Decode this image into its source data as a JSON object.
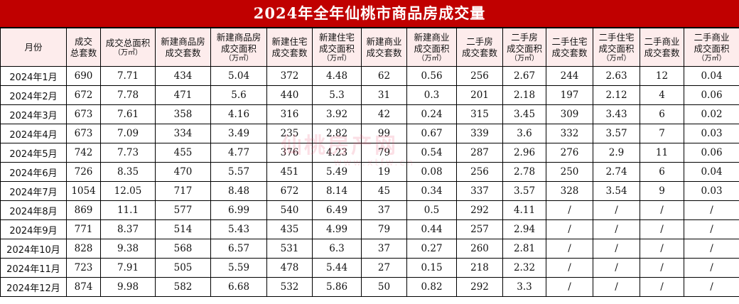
{
  "title": "2024年全年仙桃市商品房成交量",
  "headers": [
    {
      "label": "月份",
      "sub": ""
    },
    {
      "label": "成交\n总套数",
      "sub": ""
    },
    {
      "label": "成交总面积",
      "sub": "（万㎡）"
    },
    {
      "label": "新建商品房\n成交套数",
      "sub": ""
    },
    {
      "label": "新建商品房\n成交面积",
      "sub": "（万㎡）"
    },
    {
      "label": "新建住宅\n成交套数",
      "sub": ""
    },
    {
      "label": "新建住宅\n成交面积",
      "sub": "（万㎡）"
    },
    {
      "label": "新建商业\n成交套数",
      "sub": ""
    },
    {
      "label": "新建商业\n成交面积",
      "sub": "（万㎡）"
    },
    {
      "label": "二手房\n成交套数",
      "sub": ""
    },
    {
      "label": "二手房\n成交面积",
      "sub": "（万㎡）"
    },
    {
      "label": "二手住宅\n成交套数",
      "sub": ""
    },
    {
      "label": "二手住宅\n成交面积",
      "sub": "（万㎡）"
    },
    {
      "label": "二手商业\n成交套数",
      "sub": ""
    },
    {
      "label": "二手商业\n成交面积",
      "sub": "（万㎡）"
    }
  ],
  "rows": [
    [
      "2024年1月",
      "690",
      "7.71",
      "434",
      "5.04",
      "372",
      "4.48",
      "62",
      "0.56",
      "256",
      "2.67",
      "244",
      "2.63",
      "12",
      "0.04"
    ],
    [
      "2024年2月",
      "672",
      "7.78",
      "471",
      "5.6",
      "440",
      "5.3",
      "31",
      "0.3",
      "201",
      "2.18",
      "197",
      "2.12",
      "4",
      "0.06"
    ],
    [
      "2024年3月",
      "673",
      "7.61",
      "358",
      "4.16",
      "316",
      "3.92",
      "42",
      "0.24",
      "315",
      "3.45",
      "309",
      "3.43",
      "6",
      "0.02"
    ],
    [
      "2024年4月",
      "673",
      "7.09",
      "334",
      "3.49",
      "235",
      "2.82",
      "99",
      "0.67",
      "339",
      "3.6",
      "332",
      "3.57",
      "7",
      "0.03"
    ],
    [
      "2024年5月",
      "742",
      "7.73",
      "455",
      "4.77",
      "376",
      "4.23",
      "79",
      "0.54",
      "287",
      "2.96",
      "276",
      "2.9",
      "11",
      "0.06"
    ],
    [
      "2024年6月",
      "726",
      "8.35",
      "470",
      "5.57",
      "451",
      "5.49",
      "19",
      "0.08",
      "256",
      "2.78",
      "250",
      "2.74",
      "6",
      "0.04"
    ],
    [
      "2024年7月",
      "1054",
      "12.05",
      "717",
      "8.48",
      "672",
      "8.14",
      "45",
      "0.34",
      "337",
      "3.57",
      "328",
      "3.54",
      "9",
      "0.03"
    ],
    [
      "2024年8月",
      "869",
      "11.1",
      "577",
      "6.99",
      "540",
      "6.49",
      "37",
      "0.5",
      "292",
      "4.11",
      "/",
      "/",
      "/",
      "/"
    ],
    [
      "2024年9月",
      "771",
      "8.37",
      "514",
      "5.43",
      "435",
      "4.99",
      "79",
      "0.44",
      "257",
      "2.94",
      "/",
      "/",
      "/",
      "/"
    ],
    [
      "2024年10月",
      "828",
      "9.38",
      "568",
      "6.57",
      "531",
      "6.3",
      "37",
      "0.27",
      "260",
      "2.81",
      "/",
      "/",
      "/",
      "/"
    ],
    [
      "2024年11月",
      "723",
      "7.91",
      "505",
      "5.59",
      "478",
      "5.44",
      "27",
      "0.15",
      "218",
      "2.32",
      "/",
      "/",
      "/",
      "/"
    ],
    [
      "2024年12月",
      "874",
      "9.98",
      "582",
      "6.68",
      "532",
      "5.86",
      "50",
      "0.82",
      "292",
      "3.3",
      "/",
      "/",
      "/",
      "/"
    ]
  ],
  "watermark": {
    "text": "仙桃房产网",
    "sub": "www.xtfw.cn"
  },
  "colors": {
    "title_bg": "#c00000",
    "title_text": "#ffffff",
    "header_bg": "#fdecec",
    "watermark": "#eb506e"
  }
}
